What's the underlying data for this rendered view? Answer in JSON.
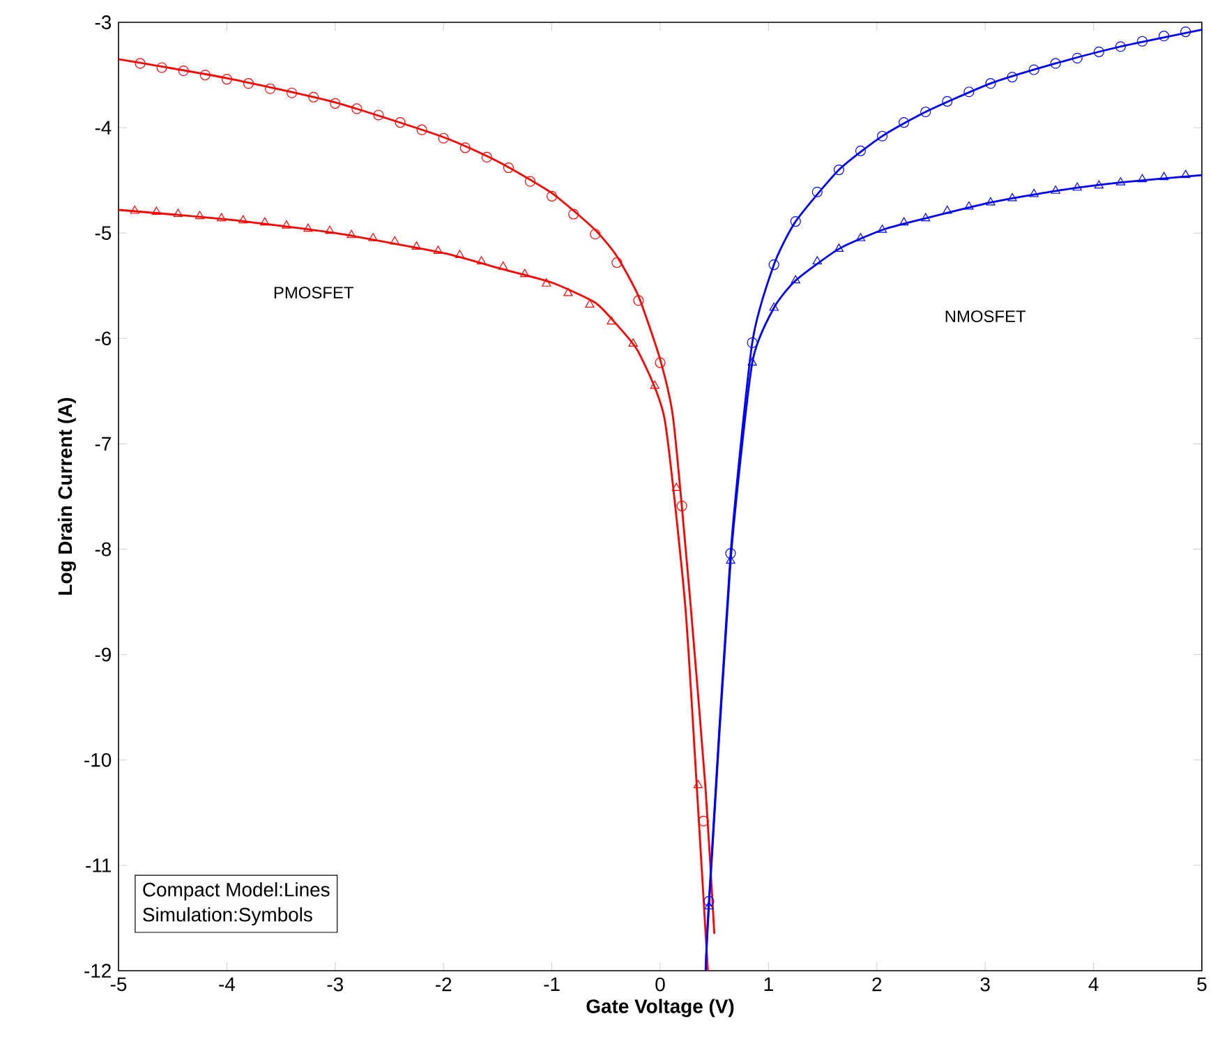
{
  "chart_data": {
    "type": "line",
    "xlabel": "Gate Voltage (V)",
    "ylabel": "Log Drain Current (A)",
    "xlim": [
      -5,
      5
    ],
    "ylim": [
      -12,
      -3
    ],
    "xticks": [
      -5,
      -4,
      -3,
      -2,
      -1,
      0,
      1,
      2,
      3,
      4,
      5
    ],
    "yticks": [
      -12,
      -11,
      -10,
      -9,
      -8,
      -7,
      -6,
      -5,
      -4,
      -3
    ],
    "grid": false,
    "series": [
      {
        "color": "#ff0000",
        "marker": "none",
        "x": [
          -5,
          -4,
          -3,
          -2,
          -1.5,
          -1,
          -0.6,
          -0.4,
          -0.2,
          0,
          0.12,
          0.28,
          0.42,
          0.5
        ],
        "values": [
          -3.35,
          -3.53,
          -3.76,
          -4.09,
          -4.32,
          -4.62,
          -4.97,
          -5.22,
          -5.6,
          -6.2,
          -6.76,
          -8.52,
          -10.29,
          -11.65
        ]
      },
      {
        "color": "#ff0000",
        "marker": "none",
        "x": [
          -5,
          -4,
          -3,
          -2,
          -1.5,
          -1,
          -0.6,
          -0.4,
          -0.2,
          0.04,
          0.23,
          0.34,
          0.44
        ],
        "values": [
          -4.78,
          -4.87,
          -5.0,
          -5.19,
          -5.33,
          -5.47,
          -5.66,
          -5.87,
          -6.13,
          -6.76,
          -8.52,
          -10.29,
          -12
        ]
      },
      {
        "color": "#0000ff",
        "marker": "none",
        "x": [
          0.42,
          0.45,
          0.65,
          0.85,
          1.05,
          1.25,
          1.65,
          2.05,
          2.45,
          3.05,
          3.65,
          4.25,
          5
        ],
        "values": [
          -12,
          -11.34,
          -8.04,
          -6.04,
          -5.3,
          -4.89,
          -4.4,
          -4.08,
          -3.85,
          -3.58,
          -3.39,
          -3.23,
          -3.07
        ]
      },
      {
        "color": "#0000ff",
        "marker": "none",
        "x": [
          0.42,
          0.45,
          0.65,
          0.85,
          1.05,
          1.25,
          1.65,
          2.05,
          2.45,
          3.05,
          3.65,
          4.25,
          5
        ],
        "values": [
          -12,
          -11.39,
          -8.11,
          -6.23,
          -5.71,
          -5.45,
          -5.15,
          -4.97,
          -4.86,
          -4.71,
          -4.6,
          -4.52,
          -4.45
        ]
      },
      {
        "type": "scatter",
        "color": "#ff0000",
        "marker": "circle",
        "x": [
          -4.8,
          -4.6,
          -4.4,
          -4.2,
          -4.0,
          -3.8,
          -3.6,
          -3.4,
          -3.2,
          -3.0,
          -2.8,
          -2.6,
          -2.4,
          -2.2,
          -2.0,
          -1.8,
          -1.6,
          -1.4,
          -1.2,
          -1.0,
          -0.8,
          -0.6,
          -0.4,
          -0.2,
          0,
          0.2,
          0.4
        ],
        "values": [
          -3.39,
          -3.43,
          -3.46,
          -3.5,
          -3.54,
          -3.58,
          -3.63,
          -3.67,
          -3.71,
          -3.77,
          -3.82,
          -3.88,
          -3.95,
          -4.02,
          -4.1,
          -4.19,
          -4.28,
          -4.38,
          -4.51,
          -4.65,
          -4.82,
          -5.01,
          -5.28,
          -5.64,
          -6.23,
          -7.59,
          -10.58
        ]
      },
      {
        "type": "scatter",
        "color": "#ff0000",
        "marker": "triangle",
        "x": [
          -4.85,
          -4.65,
          -4.45,
          -4.25,
          -4.05,
          -3.85,
          -3.65,
          -3.45,
          -3.25,
          -3.05,
          -2.85,
          -2.65,
          -2.45,
          -2.25,
          -2.05,
          -1.85,
          -1.65,
          -1.45,
          -1.25,
          -1.05,
          -0.85,
          -0.65,
          -0.45,
          -0.25,
          -0.05,
          0.15,
          0.35
        ],
        "values": [
          -4.79,
          -4.8,
          -4.82,
          -4.84,
          -4.86,
          -4.88,
          -4.9,
          -4.93,
          -4.96,
          -4.98,
          -5.02,
          -5.05,
          -5.08,
          -5.13,
          -5.17,
          -5.21,
          -5.27,
          -5.32,
          -5.39,
          -5.48,
          -5.57,
          -5.68,
          -5.84,
          -6.05,
          -6.45,
          -7.42,
          -10.24
        ]
      },
      {
        "type": "scatter",
        "color": "#0000ff",
        "marker": "circle",
        "x": [
          0.45,
          0.65,
          0.85,
          1.05,
          1.25,
          1.45,
          1.65,
          1.85,
          2.05,
          2.25,
          2.45,
          2.65,
          2.85,
          3.05,
          3.25,
          3.45,
          3.65,
          3.85,
          4.05,
          4.25,
          4.45,
          4.65,
          4.85
        ],
        "values": [
          -11.34,
          -8.04,
          -6.04,
          -5.3,
          -4.89,
          -4.61,
          -4.4,
          -4.22,
          -4.08,
          -3.95,
          -3.85,
          -3.75,
          -3.66,
          -3.58,
          -3.52,
          -3.45,
          -3.39,
          -3.34,
          -3.28,
          -3.23,
          -3.18,
          -3.13,
          -3.09
        ]
      },
      {
        "type": "scatter",
        "color": "#0000ff",
        "marker": "triangle",
        "x": [
          0.45,
          0.65,
          0.85,
          1.05,
          1.25,
          1.45,
          1.65,
          1.85,
          2.05,
          2.25,
          2.45,
          2.65,
          2.85,
          3.05,
          3.25,
          3.45,
          3.65,
          3.85,
          4.05,
          4.25,
          4.45,
          4.65,
          4.85
        ],
        "values": [
          -11.39,
          -8.11,
          -6.23,
          -5.71,
          -5.45,
          -5.27,
          -5.15,
          -5.05,
          -4.97,
          -4.9,
          -4.86,
          -4.79,
          -4.75,
          -4.71,
          -4.67,
          -4.63,
          -4.6,
          -4.57,
          -4.55,
          -4.52,
          -4.49,
          -4.47,
          -4.45
        ]
      }
    ],
    "annotations": [
      "PMOSFET",
      "NMOSFET",
      "Compact Model:Lines",
      "Simulation:Symbols"
    ]
  }
}
